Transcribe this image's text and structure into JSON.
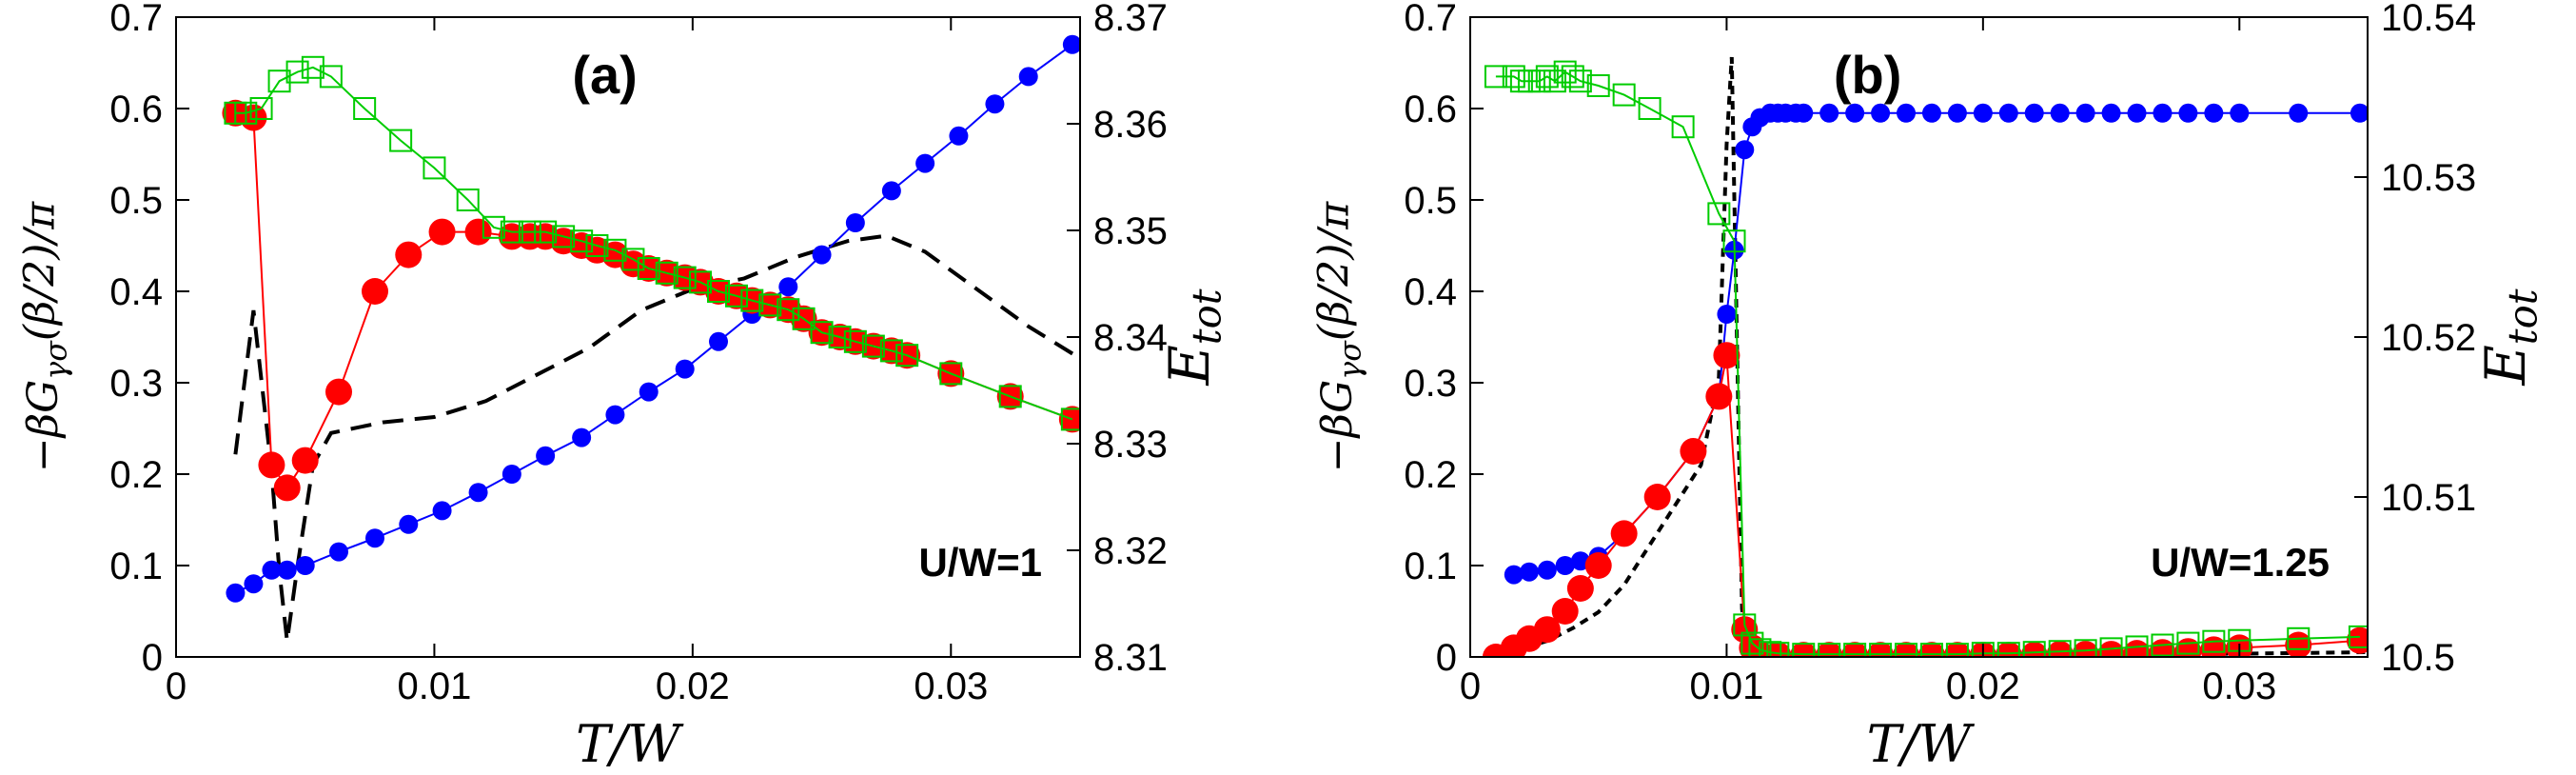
{
  "chart_data": [
    {
      "type": "line",
      "panel_label": "(a)",
      "annotation": "U/W=1",
      "xlabel": "T/W",
      "ylabel": "−βG_γσ(β/2)/π",
      "y2label": "E_tot",
      "xlim": [
        0,
        0.035
      ],
      "ylim": [
        0,
        0.7
      ],
      "y2lim": [
        8.31,
        8.37
      ],
      "x_ticks": [
        "0",
        "0.01",
        "0.02",
        "0.03"
      ],
      "y_ticks": [
        "0",
        "0.1",
        "0.2",
        "0.3",
        "0.4",
        "0.5",
        "0.6",
        "0.7"
      ],
      "y2_ticks": [
        "8.31",
        "8.32",
        "8.33",
        "8.34",
        "8.35",
        "8.36",
        "8.37"
      ],
      "grid": false,
      "series": [
        {
          "color": "#ff0000",
          "marker": "circle-filled",
          "axis": "left",
          "x": [
            0.0023,
            0.003,
            0.0037,
            0.0043,
            0.005,
            0.0063,
            0.0077,
            0.009,
            0.0103,
            0.0117,
            0.013,
            0.0137,
            0.0143,
            0.015,
            0.0157,
            0.0163,
            0.017,
            0.0177,
            0.0183,
            0.019,
            0.0197,
            0.0203,
            0.021,
            0.0217,
            0.0223,
            0.023,
            0.0237,
            0.0243,
            0.025,
            0.0257,
            0.0263,
            0.027,
            0.0277,
            0.0283,
            0.03,
            0.0323,
            0.0347
          ],
          "y": [
            0.595,
            0.59,
            0.21,
            0.185,
            0.215,
            0.29,
            0.4,
            0.44,
            0.465,
            0.465,
            0.46,
            0.46,
            0.46,
            0.455,
            0.45,
            0.445,
            0.44,
            0.43,
            0.425,
            0.42,
            0.415,
            0.41,
            0.4,
            0.395,
            0.39,
            0.385,
            0.38,
            0.37,
            0.355,
            0.35,
            0.345,
            0.34,
            0.335,
            0.33,
            0.31,
            0.285,
            0.26
          ]
        },
        {
          "color": "#00cc00",
          "marker": "square-open",
          "axis": "left",
          "x": [
            0.0023,
            0.0027,
            0.0033,
            0.004,
            0.0047,
            0.0053,
            0.006,
            0.0073,
            0.0087,
            0.01,
            0.0113,
            0.0123,
            0.013,
            0.0137,
            0.0143,
            0.015,
            0.0157,
            0.0163,
            0.017,
            0.0177,
            0.0183,
            0.019,
            0.0197,
            0.0203,
            0.021,
            0.0217,
            0.0223,
            0.023,
            0.0237,
            0.0243,
            0.025,
            0.0257,
            0.0263,
            0.027,
            0.0277,
            0.0283,
            0.03,
            0.0323,
            0.0347
          ],
          "y": [
            0.595,
            0.595,
            0.6,
            0.63,
            0.64,
            0.645,
            0.635,
            0.6,
            0.565,
            0.535,
            0.5,
            0.47,
            0.465,
            0.465,
            0.465,
            0.46,
            0.455,
            0.45,
            0.445,
            0.435,
            0.425,
            0.42,
            0.415,
            0.41,
            0.4,
            0.395,
            0.39,
            0.385,
            0.38,
            0.37,
            0.355,
            0.35,
            0.345,
            0.34,
            0.335,
            0.33,
            0.31,
            0.285,
            0.26
          ]
        },
        {
          "color": "#0000ff",
          "marker": "circle-filled-small",
          "axis": "left",
          "x": [
            0.0023,
            0.003,
            0.0037,
            0.0043,
            0.005,
            0.0063,
            0.0077,
            0.009,
            0.0103,
            0.0117,
            0.013,
            0.0143,
            0.0157,
            0.017,
            0.0183,
            0.0197,
            0.021,
            0.0223,
            0.0237,
            0.025,
            0.0263,
            0.0277,
            0.029,
            0.0303,
            0.0317,
            0.033,
            0.0347
          ],
          "y": [
            0.07,
            0.08,
            0.095,
            0.095,
            0.1,
            0.115,
            0.13,
            0.145,
            0.16,
            0.18,
            0.2,
            0.22,
            0.24,
            0.265,
            0.29,
            0.315,
            0.345,
            0.375,
            0.405,
            0.44,
            0.475,
            0.51,
            0.54,
            0.57,
            0.605,
            0.635,
            0.67
          ]
        },
        {
          "color": "#000000",
          "style": "dashed",
          "axis": "right",
          "x": [
            0.0023,
            0.003,
            0.0037,
            0.004,
            0.0043,
            0.0047,
            0.0053,
            0.006,
            0.007,
            0.008,
            0.01,
            0.012,
            0.014,
            0.016,
            0.018,
            0.02,
            0.022,
            0.024,
            0.026,
            0.0275,
            0.029,
            0.031,
            0.033,
            0.035
          ],
          "y": [
            8.329,
            8.3425,
            8.3275,
            8.318,
            8.3115,
            8.3185,
            8.328,
            8.331,
            8.3315,
            8.332,
            8.3325,
            8.334,
            8.3365,
            8.339,
            8.3425,
            8.3445,
            8.3455,
            8.3475,
            8.349,
            8.3495,
            8.348,
            8.3445,
            8.341,
            8.338
          ]
        }
      ]
    },
    {
      "type": "line",
      "panel_label": "(b)",
      "annotation": "U/W=1.25",
      "xlabel": "T/W",
      "ylabel": "−βG_γσ(β/2)/π",
      "y2label": "E_tot",
      "xlim": [
        0,
        0.035
      ],
      "ylim": [
        0,
        0.7
      ],
      "y2lim": [
        10.5,
        10.54
      ],
      "x_ticks": [
        "0",
        "0.01",
        "0.02",
        "0.03"
      ],
      "y_ticks": [
        "0",
        "0.1",
        "0.2",
        "0.3",
        "0.4",
        "0.5",
        "0.6",
        "0.7"
      ],
      "y2_ticks": [
        "10.5",
        "10.51",
        "10.52",
        "10.53",
        "10.54"
      ],
      "grid": false,
      "series": [
        {
          "color": "#ff0000",
          "marker": "circle-filled",
          "axis": "left",
          "x": [
            0.001,
            0.0017,
            0.0023,
            0.003,
            0.0037,
            0.0043,
            0.005,
            0.006,
            0.0073,
            0.0087,
            0.0097,
            0.01,
            0.0107,
            0.011,
            0.0113,
            0.012,
            0.013,
            0.014,
            0.015,
            0.016,
            0.017,
            0.018,
            0.019,
            0.02,
            0.021,
            0.022,
            0.023,
            0.024,
            0.025,
            0.026,
            0.027,
            0.028,
            0.029,
            0.03,
            0.0323,
            0.0347
          ],
          "y": [
            0.0,
            0.01,
            0.02,
            0.03,
            0.05,
            0.075,
            0.1,
            0.135,
            0.175,
            0.225,
            0.285,
            0.33,
            0.03,
            0.01,
            0.003,
            0.002,
            0.002,
            0.002,
            0.002,
            0.002,
            0.002,
            0.002,
            0.002,
            0.002,
            0.002,
            0.002,
            0.003,
            0.003,
            0.003,
            0.004,
            0.005,
            0.006,
            0.008,
            0.01,
            0.013,
            0.018
          ]
        },
        {
          "color": "#00cc00",
          "marker": "square-open",
          "axis": "left",
          "x": [
            0.001,
            0.0017,
            0.002,
            0.0023,
            0.0027,
            0.003,
            0.0033,
            0.0037,
            0.004,
            0.0043,
            0.005,
            0.006,
            0.007,
            0.0083,
            0.0097,
            0.0103,
            0.0107,
            0.011,
            0.0113,
            0.0117,
            0.012,
            0.013,
            0.014,
            0.015,
            0.016,
            0.017,
            0.018,
            0.019,
            0.02,
            0.021,
            0.022,
            0.023,
            0.024,
            0.025,
            0.026,
            0.027,
            0.028,
            0.029,
            0.03,
            0.0323,
            0.0347
          ],
          "y": [
            0.635,
            0.635,
            0.63,
            0.63,
            0.63,
            0.635,
            0.63,
            0.64,
            0.635,
            0.63,
            0.625,
            0.615,
            0.6,
            0.58,
            0.485,
            0.455,
            0.035,
            0.015,
            0.008,
            0.005,
            0.004,
            0.003,
            0.003,
            0.003,
            0.003,
            0.003,
            0.003,
            0.003,
            0.004,
            0.004,
            0.005,
            0.006,
            0.007,
            0.009,
            0.011,
            0.013,
            0.015,
            0.017,
            0.018,
            0.02,
            0.022
          ]
        },
        {
          "color": "#0000ff",
          "marker": "circle-filled-small",
          "axis": "left",
          "x": [
            0.0017,
            0.0023,
            0.003,
            0.0037,
            0.0043,
            0.005,
            0.006,
            0.0073,
            0.0087,
            0.0097,
            0.01,
            0.0103,
            0.0107,
            0.011,
            0.0113,
            0.0117,
            0.012,
            0.0123,
            0.0127,
            0.013,
            0.014,
            0.015,
            0.016,
            0.017,
            0.018,
            0.019,
            0.02,
            0.021,
            0.022,
            0.023,
            0.024,
            0.025,
            0.026,
            0.027,
            0.028,
            0.029,
            0.03,
            0.0323,
            0.0347
          ],
          "y": [
            0.09,
            0.093,
            0.095,
            0.1,
            0.105,
            0.11,
            0.135,
            0.175,
            0.225,
            0.285,
            0.375,
            0.445,
            0.555,
            0.58,
            0.59,
            0.595,
            0.595,
            0.595,
            0.595,
            0.595,
            0.595,
            0.595,
            0.595,
            0.595,
            0.595,
            0.595,
            0.595,
            0.595,
            0.595,
            0.595,
            0.595,
            0.595,
            0.595,
            0.595,
            0.595,
            0.595,
            0.595,
            0.595,
            0.595
          ]
        },
        {
          "color": "#000000",
          "style": "dotted-dense",
          "axis": "right",
          "x": [
            0.001,
            0.002,
            0.003,
            0.004,
            0.005,
            0.006,
            0.007,
            0.008,
            0.009,
            0.0097,
            0.01,
            0.0102,
            0.0104,
            0.0106,
            0.0108,
            0.011,
            0.012,
            0.015,
            0.02,
            0.025,
            0.03,
            0.035
          ],
          "y": [
            10.5,
            10.5005,
            10.501,
            10.5018,
            10.5028,
            10.5045,
            10.507,
            10.5095,
            10.512,
            10.5175,
            10.532,
            10.5375,
            10.52,
            10.503,
            10.5008,
            10.5003,
            10.5002,
            10.5002,
            10.5002,
            10.5002,
            10.5002,
            10.5003
          ]
        }
      ]
    }
  ]
}
